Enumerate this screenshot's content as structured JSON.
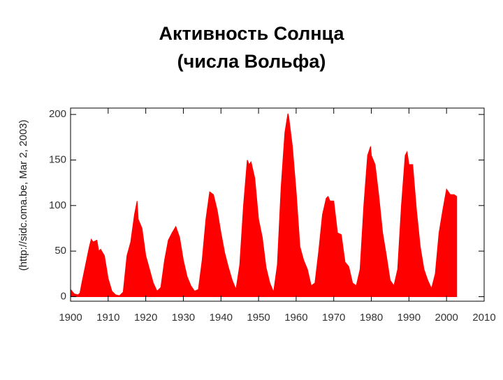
{
  "chart_data": {
    "type": "area",
    "title": "Активность Солнца",
    "subtitle": "(числа Вольфа)",
    "source": "(http://sidc.oma.be, Mar  2, 2003)",
    "color": "#ff0000",
    "x": [
      1900,
      1901,
      1902,
      1902.5,
      1903,
      1904,
      1905,
      1905.5,
      1906,
      1907,
      1907.5,
      1908,
      1909,
      1910,
      1911,
      1912,
      1913,
      1914,
      1915,
      1916,
      1917,
      1917.7,
      1918,
      1919,
      1920,
      1921,
      1922,
      1923,
      1924,
      1925,
      1926,
      1927,
      1928,
      1929,
      1930,
      1931,
      1932,
      1933,
      1934,
      1935,
      1936,
      1937,
      1938,
      1939,
      1940,
      1941,
      1942,
      1943,
      1944,
      1945,
      1946,
      1947,
      1947.5,
      1948,
      1949,
      1950,
      1951,
      1952,
      1953,
      1954,
      1955,
      1956,
      1957,
      1957.8,
      1958,
      1959,
      1960,
      1961,
      1962,
      1963,
      1964,
      1965,
      1966,
      1967,
      1968,
      1968.5,
      1969,
      1970,
      1971,
      1972,
      1973,
      1974,
      1975,
      1976,
      1977,
      1978,
      1979,
      1979.8,
      1980,
      1981,
      1982,
      1983,
      1984,
      1985,
      1986,
      1987,
      1988,
      1989,
      1989.5,
      1990,
      1991,
      1992,
      1993,
      1994,
      1995,
      1996,
      1997,
      1998,
      1999,
      2000,
      2001,
      2002,
      2002.7
    ],
    "values": [
      8,
      3,
      2,
      4,
      15,
      35,
      55,
      63,
      60,
      62,
      50,
      52,
      45,
      20,
      6,
      2,
      1,
      5,
      45,
      60,
      90,
      105,
      85,
      75,
      45,
      30,
      15,
      6,
      10,
      40,
      62,
      70,
      77,
      65,
      40,
      22,
      12,
      6,
      8,
      40,
      85,
      115,
      112,
      95,
      70,
      48,
      32,
      18,
      8,
      35,
      100,
      150,
      145,
      148,
      130,
      85,
      65,
      32,
      15,
      5,
      35,
      120,
      180,
      201,
      198,
      165,
      115,
      55,
      40,
      30,
      12,
      15,
      50,
      90,
      108,
      110,
      105,
      105,
      70,
      68,
      38,
      33,
      15,
      12,
      30,
      100,
      155,
      165,
      155,
      145,
      110,
      70,
      45,
      18,
      12,
      30,
      100,
      155,
      159,
      145,
      145,
      95,
      55,
      30,
      18,
      9,
      25,
      70,
      95,
      118,
      112,
      112,
      110
    ],
    "xlim": [
      1900,
      2010
    ],
    "ylim": [
      -5,
      207
    ],
    "xticks": [
      1900,
      1910,
      1920,
      1930,
      1940,
      1950,
      1960,
      1970,
      1980,
      1990,
      2000,
      2010
    ],
    "yticks": [
      0,
      50,
      100,
      150,
      200
    ]
  }
}
